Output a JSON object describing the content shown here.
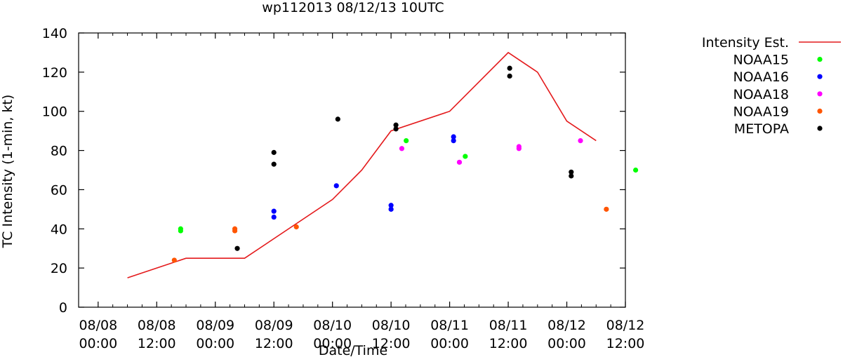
{
  "chart_data": {
    "type": "scatter",
    "title": "wp112013 08/12/13 10UTC",
    "xlabel": "Date/Time",
    "ylabel": "TC Intensity (1-min, kt)",
    "x_unit": "hours since 08/08 00:00",
    "xlim": [
      -4,
      108
    ],
    "ylim": [
      0,
      140
    ],
    "yticks": [
      0,
      20,
      40,
      60,
      80,
      100,
      120,
      140
    ],
    "xticks": [
      {
        "value": 0,
        "date": "08/08",
        "time": "00:00"
      },
      {
        "value": 12,
        "date": "08/08",
        "time": "12:00"
      },
      {
        "value": 24,
        "date": "08/09",
        "time": "00:00"
      },
      {
        "value": 36,
        "date": "08/09",
        "time": "12:00"
      },
      {
        "value": 48,
        "date": "08/10",
        "time": "00:00"
      },
      {
        "value": 60,
        "date": "08/10",
        "time": "12:00"
      },
      {
        "value": 72,
        "date": "08/11",
        "time": "00:00"
      },
      {
        "value": 84,
        "date": "08/11",
        "time": "12:00"
      },
      {
        "value": 96,
        "date": "08/12",
        "time": "00:00"
      },
      {
        "value": 108,
        "date": "08/12",
        "time": "12:00"
      }
    ],
    "line_series": {
      "name": "Intensity Est.",
      "color": "#e41a1c",
      "x": [
        6,
        18,
        30,
        48,
        54,
        60,
        72,
        84,
        90,
        96,
        102
      ],
      "y": [
        15,
        25,
        25,
        55,
        70,
        90,
        100,
        130,
        120,
        95,
        85
      ]
    },
    "scatter_series": [
      {
        "name": "NOAA15",
        "color": "#00ff00",
        "points": [
          [
            16.9,
            40
          ],
          [
            16.9,
            39
          ],
          [
            63.1,
            85
          ],
          [
            75.2,
            77
          ],
          [
            110.1,
            70
          ]
        ]
      },
      {
        "name": "NOAA16",
        "color": "#0000ff",
        "points": [
          [
            36,
            49
          ],
          [
            36,
            46
          ],
          [
            48.8,
            62
          ],
          [
            60,
            52
          ],
          [
            60,
            50
          ],
          [
            72.8,
            87
          ],
          [
            72.8,
            85
          ]
        ]
      },
      {
        "name": "NOAA18",
        "color": "#ff00ff",
        "points": [
          [
            62.2,
            81
          ],
          [
            74,
            74
          ],
          [
            86.2,
            82
          ],
          [
            86.2,
            81
          ],
          [
            98.8,
            85
          ]
        ]
      },
      {
        "name": "NOAA19",
        "color": "#ff5500",
        "points": [
          [
            15.6,
            24
          ],
          [
            28,
            40
          ],
          [
            28,
            39
          ],
          [
            40.6,
            41
          ],
          [
            104.1,
            50
          ]
        ]
      },
      {
        "name": "METOPA",
        "color": "#000000",
        "points": [
          [
            28.5,
            30
          ],
          [
            36,
            79
          ],
          [
            36,
            73
          ],
          [
            49.1,
            96
          ],
          [
            61,
            93
          ],
          [
            61,
            91
          ],
          [
            84.3,
            122
          ],
          [
            84.3,
            118
          ],
          [
            96.9,
            69
          ],
          [
            96.9,
            67
          ]
        ]
      }
    ]
  }
}
